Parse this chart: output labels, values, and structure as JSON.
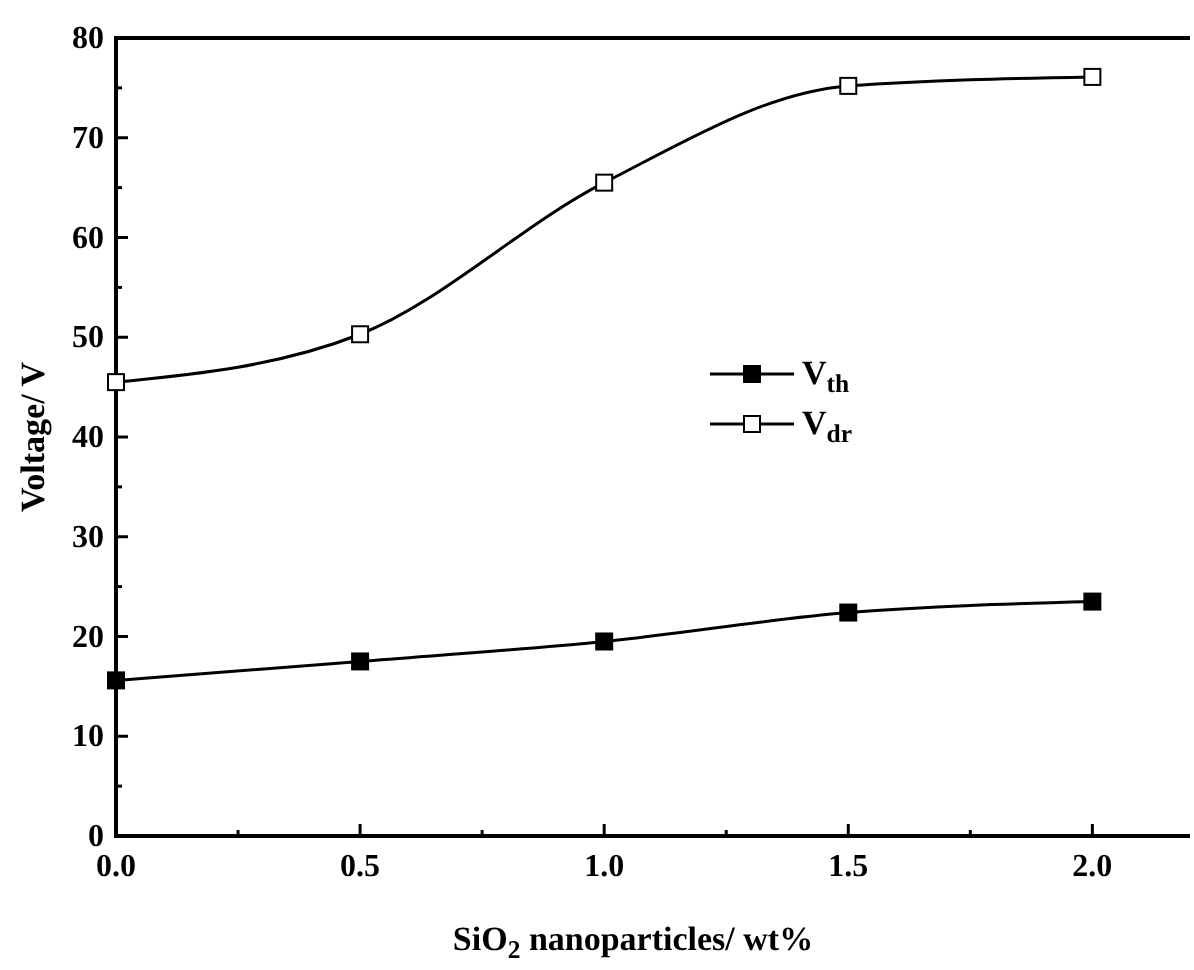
{
  "chart_data": {
    "type": "line",
    "xlabel": "SiO$_{2}$ nanoparticles/ wt%",
    "ylabel": "Voltage/ V",
    "x": [
      0,
      0.5,
      1.0,
      1.5,
      2.0
    ],
    "series": [
      {
        "name": "V$_{th}$",
        "color": "#000000",
        "values": [
          15.6,
          17.5,
          19.5,
          22.4,
          23.5
        ],
        "marker": "square"
      },
      {
        "name": "V$_{dr}$",
        "color": "#000000",
        "values": [
          45.5,
          50.3,
          65.5,
          75.2,
          76.1
        ],
        "marker": "square"
      }
    ],
    "xlim": [
      0,
      2.2
    ],
    "xticks": [
      {
        "value": 0,
        "label": "0.0"
      },
      {
        "value": 0.25,
        "label": null
      },
      {
        "value": 0.5,
        "label": "0.5"
      },
      {
        "value": 0.75,
        "label": null
      },
      {
        "value": 1,
        "label": "1.0"
      },
      {
        "value": 1.25,
        "label": null
      },
      {
        "value": 1.5,
        "label": "1.5"
      },
      {
        "value": 1.75,
        "label": null
      },
      {
        "value": 2,
        "label": "2.0"
      }
    ],
    "ylim": [
      0,
      80
    ],
    "yticks": [
      0,
      {
        "value": 5,
        "label": null
      },
      10,
      {
        "value": 15,
        "label": null
      },
      20,
      {
        "value": 25,
        "label": null
      },
      30,
      {
        "value": 35,
        "label": null
      },
      40,
      {
        "value": 45,
        "label": null
      },
      50,
      {
        "value": 55,
        "label": null
      },
      60,
      {
        "value": 65,
        "label": null
      },
      70,
      {
        "value": 75,
        "label": null
      },
      80
    ],
    "grid": false,
    "legend": "right",
    "line_style": "solid"
  }
}
